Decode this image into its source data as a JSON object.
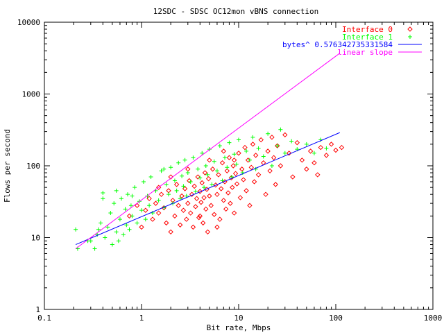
{
  "chart_data": {
    "type": "scatter",
    "title": "12SDC - SDSC OC12mon vBNS connection",
    "xlabel": "Bit rate, Mbps",
    "ylabel": "Flows per second",
    "xscale": "log",
    "yscale": "log",
    "xlim": [
      0.1,
      1000
    ],
    "ylim": [
      1,
      10000
    ],
    "xticks": [
      {
        "value": 0.1,
        "label": "0.1"
      },
      {
        "value": 1,
        "label": "1"
      },
      {
        "value": 10,
        "label": "10"
      },
      {
        "value": 100,
        "label": "100"
      },
      {
        "value": 1000,
        "label": "1000"
      }
    ],
    "yticks": [
      {
        "value": 1,
        "label": "1"
      },
      {
        "value": 10,
        "label": "10"
      },
      {
        "value": 100,
        "label": "100"
      },
      {
        "value": 1000,
        "label": "1000"
      },
      {
        "value": 10000,
        "label": "10000"
      }
    ],
    "grid": false,
    "legend_position": "top-right",
    "series": [
      {
        "name": "Interface 0",
        "kind": "points",
        "marker": "diamond",
        "color": "#ff0000",
        "points": [
          [
            0.75,
            20
          ],
          [
            0.9,
            28
          ],
          [
            1.0,
            14
          ],
          [
            1.1,
            24
          ],
          [
            1.2,
            35
          ],
          [
            1.3,
            18
          ],
          [
            1.4,
            30
          ],
          [
            1.5,
            22
          ],
          [
            1.6,
            40
          ],
          [
            1.7,
            26
          ],
          [
            1.8,
            16
          ],
          [
            1.9,
            45
          ],
          [
            2.0,
            12
          ],
          [
            2.1,
            33
          ],
          [
            2.2,
            20
          ],
          [
            2.3,
            55
          ],
          [
            2.4,
            28
          ],
          [
            2.5,
            15
          ],
          [
            2.6,
            38
          ],
          [
            2.7,
            24
          ],
          [
            2.8,
            48
          ],
          [
            2.9,
            18
          ],
          [
            3.0,
            30
          ],
          [
            3.1,
            62
          ],
          [
            3.2,
            22
          ],
          [
            3.3,
            40
          ],
          [
            3.4,
            14
          ],
          [
            3.5,
            52
          ],
          [
            3.6,
            27
          ],
          [
            3.7,
            35
          ],
          [
            3.8,
            70
          ],
          [
            3.9,
            19
          ],
          [
            4.0,
            44
          ],
          [
            4.1,
            31
          ],
          [
            4.2,
            58
          ],
          [
            4.3,
            16
          ],
          [
            4.4,
            36
          ],
          [
            4.5,
            80
          ],
          [
            4.6,
            25
          ],
          [
            4.7,
            47
          ],
          [
            4.8,
            12
          ],
          [
            4.9,
            66
          ],
          [
            5.0,
            38
          ],
          [
            5.2,
            28
          ],
          [
            5.4,
            90
          ],
          [
            5.6,
            21
          ],
          [
            5.8,
            54
          ],
          [
            6.0,
            40
          ],
          [
            6.2,
            75
          ],
          [
            6.4,
            18
          ],
          [
            6.6,
            48
          ],
          [
            6.8,
            110
          ],
          [
            7.0,
            33
          ],
          [
            7.2,
            60
          ],
          [
            7.4,
            25
          ],
          [
            7.6,
            85
          ],
          [
            7.8,
            42
          ],
          [
            8.0,
            130
          ],
          [
            8.2,
            30
          ],
          [
            8.4,
            68
          ],
          [
            8.6,
            50
          ],
          [
            8.8,
            100
          ],
          [
            9.0,
            22
          ],
          [
            9.3,
            78
          ],
          [
            9.6,
            56
          ],
          [
            10.0,
            150
          ],
          [
            10.4,
            36
          ],
          [
            10.8,
            90
          ],
          [
            11.2,
            64
          ],
          [
            11.6,
            180
          ],
          [
            12.0,
            45
          ],
          [
            12.5,
            120
          ],
          [
            13.0,
            28
          ],
          [
            13.5,
            95
          ],
          [
            14.0,
            200
          ],
          [
            14.5,
            60
          ],
          [
            15.0,
            140
          ],
          [
            16.0,
            75
          ],
          [
            17.0,
            230
          ],
          [
            18.0,
            110
          ],
          [
            19.0,
            40
          ],
          [
            20.0,
            160
          ],
          [
            21.0,
            85
          ],
          [
            22.0,
            250
          ],
          [
            23.0,
            130
          ],
          [
            24.0,
            55
          ],
          [
            25.0,
            190
          ],
          [
            27.0,
            100
          ],
          [
            30.0,
            270
          ],
          [
            33.0,
            150
          ],
          [
            36.0,
            70
          ],
          [
            40.0,
            210
          ],
          [
            45.0,
            120
          ],
          [
            50.0,
            90
          ],
          [
            55.0,
            160
          ],
          [
            60.0,
            110
          ],
          [
            65.0,
            75
          ],
          [
            70.0,
            180
          ],
          [
            80.0,
            140
          ],
          [
            90.0,
            200
          ],
          [
            100.0,
            165
          ],
          [
            115.0,
            180
          ],
          [
            2.0,
            70
          ],
          [
            3.0,
            90
          ],
          [
            5.0,
            120
          ],
          [
            7.0,
            160
          ],
          [
            1.5,
            50
          ],
          [
            4.0,
            20
          ],
          [
            6.0,
            14
          ],
          [
            9.0,
            120
          ]
        ]
      },
      {
        "name": "Interface 1",
        "kind": "points",
        "marker": "plus",
        "color": "#00ff00",
        "points": [
          [
            0.21,
            13
          ],
          [
            0.22,
            7
          ],
          [
            0.3,
            9
          ],
          [
            0.33,
            7
          ],
          [
            0.35,
            11
          ],
          [
            0.38,
            16
          ],
          [
            0.4,
            42
          ],
          [
            0.42,
            10
          ],
          [
            0.45,
            14
          ],
          [
            0.48,
            22
          ],
          [
            0.5,
            8
          ],
          [
            0.52,
            30
          ],
          [
            0.55,
            12
          ],
          [
            0.58,
            9
          ],
          [
            0.6,
            18
          ],
          [
            0.62,
            35
          ],
          [
            0.65,
            11
          ],
          [
            0.68,
            25
          ],
          [
            0.7,
            15
          ],
          [
            0.72,
            40
          ],
          [
            0.75,
            13
          ],
          [
            0.78,
            28
          ],
          [
            0.8,
            20
          ],
          [
            0.85,
            50
          ],
          [
            0.9,
            16
          ],
          [
            0.95,
            32
          ],
          [
            1.0,
            24
          ],
          [
            1.05,
            60
          ],
          [
            1.1,
            18
          ],
          [
            1.15,
            38
          ],
          [
            1.2,
            28
          ],
          [
            1.25,
            70
          ],
          [
            1.3,
            22
          ],
          [
            1.4,
            45
          ],
          [
            1.5,
            33
          ],
          [
            1.6,
            85
          ],
          [
            1.7,
            26
          ],
          [
            1.8,
            55
          ],
          [
            1.9,
            40
          ],
          [
            2.0,
            95
          ],
          [
            2.1,
            30
          ],
          [
            2.2,
            62
          ],
          [
            2.3,
            45
          ],
          [
            2.4,
            110
          ],
          [
            2.5,
            35
          ],
          [
            2.6,
            72
          ],
          [
            2.7,
            52
          ],
          [
            2.8,
            120
          ],
          [
            2.9,
            38
          ],
          [
            3.0,
            80
          ],
          [
            3.2,
            60
          ],
          [
            3.4,
            130
          ],
          [
            3.6,
            44
          ],
          [
            3.8,
            90
          ],
          [
            4.0,
            68
          ],
          [
            4.2,
            150
          ],
          [
            4.4,
            50
          ],
          [
            4.6,
            100
          ],
          [
            4.8,
            75
          ],
          [
            5.0,
            170
          ],
          [
            5.3,
            55
          ],
          [
            5.6,
            115
          ],
          [
            6.0,
            85
          ],
          [
            6.4,
            190
          ],
          [
            6.8,
            62
          ],
          [
            7.2,
            130
          ],
          [
            7.6,
            95
          ],
          [
            8.0,
            210
          ],
          [
            8.5,
            70
          ],
          [
            9.0,
            145
          ],
          [
            9.5,
            105
          ],
          [
            10.0,
            230
          ],
          [
            11.0,
            80
          ],
          [
            12.0,
            160
          ],
          [
            13.0,
            120
          ],
          [
            14.0,
            250
          ],
          [
            15.0,
            90
          ],
          [
            16.0,
            175
          ],
          [
            18.0,
            135
          ],
          [
            20.0,
            280
          ],
          [
            22.0,
            100
          ],
          [
            25.0,
            190
          ],
          [
            27.0,
            320
          ],
          [
            30.0,
            150
          ],
          [
            35.0,
            220
          ],
          [
            40.0,
            170
          ],
          [
            50.0,
            200
          ],
          [
            60.0,
            150
          ],
          [
            70.0,
            230
          ],
          [
            80.0,
            175
          ],
          [
            0.4,
            35
          ],
          [
            0.55,
            45
          ],
          [
            0.8,
            38
          ],
          [
            1.7,
            90
          ],
          [
            0.28,
            9
          ],
          [
            0.36,
            13
          ]
        ]
      },
      {
        "name": "bytes^ 0.576342735331584",
        "kind": "line",
        "color": "#0000ff",
        "exponent": 0.576342735331584,
        "x": [
          0.21,
          110
        ],
        "y": [
          8,
          290
        ]
      },
      {
        "name": "linear slope",
        "kind": "line",
        "color": "#ff00ff",
        "x": [
          0.21,
          110
        ],
        "y": [
          7,
          3700
        ]
      }
    ]
  }
}
